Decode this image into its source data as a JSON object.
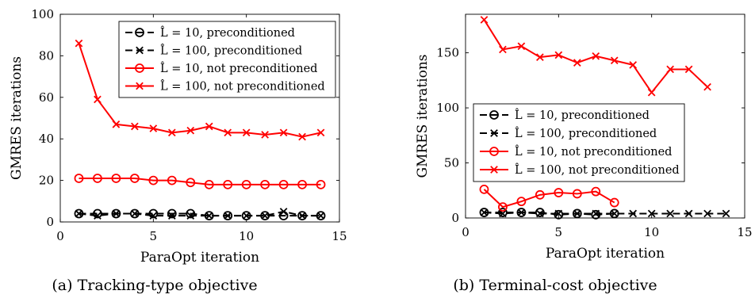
{
  "chart_data": [
    {
      "type": "line",
      "caption": "(a) Tracking-type objective",
      "xlabel": "ParaOpt iteration",
      "ylabel": "GMRES iterations",
      "xlim": [
        0,
        15
      ],
      "ylim": [
        0,
        100
      ],
      "xticks": [
        "0",
        "5",
        "10",
        "15"
      ],
      "yticks": [
        "0",
        "20",
        "40",
        "60",
        "80",
        "100"
      ],
      "legend_position": "top-right",
      "series": [
        {
          "name": "L̂ = 10, preconditioned",
          "color": "#000000",
          "dash": true,
          "marker": "circle",
          "x": [
            1,
            2,
            3,
            4,
            5,
            6,
            7,
            8,
            9,
            10,
            11,
            12,
            13,
            14
          ],
          "y": [
            4,
            4,
            4,
            4,
            4,
            4,
            4,
            3,
            3,
            3,
            3,
            3,
            3,
            3
          ]
        },
        {
          "name": "L̂ = 100, preconditioned",
          "color": "#000000",
          "dash": true,
          "marker": "x",
          "x": [
            1,
            2,
            3,
            4,
            5,
            6,
            7,
            8,
            9,
            10,
            11,
            12,
            13,
            14
          ],
          "y": [
            4,
            3,
            4,
            4,
            3,
            3,
            3,
            3,
            3,
            3,
            3,
            5,
            3,
            3
          ]
        },
        {
          "name": "L̂ = 10, not preconditioned",
          "color": "#ff0000",
          "dash": false,
          "marker": "circle",
          "x": [
            1,
            2,
            3,
            4,
            5,
            6,
            7,
            8,
            9,
            10,
            11,
            12,
            13,
            14
          ],
          "y": [
            21,
            21,
            21,
            21,
            20,
            20,
            19,
            18,
            18,
            18,
            18,
            18,
            18,
            18
          ]
        },
        {
          "name": "L̂ = 100, not preconditioned",
          "color": "#ff0000",
          "dash": false,
          "marker": "x",
          "x": [
            1,
            2,
            3,
            4,
            5,
            6,
            7,
            8,
            9,
            10,
            11,
            12,
            13,
            14
          ],
          "y": [
            86,
            59,
            47,
            46,
            45,
            43,
            44,
            46,
            43,
            43,
            42,
            43,
            41,
            43
          ]
        }
      ]
    },
    {
      "type": "line",
      "caption": "(b) Terminal-cost objective",
      "xlabel": "ParaOpt iteration",
      "ylabel": "GMRES iterations",
      "xlim": [
        0,
        15
      ],
      "ylim": [
        0,
        185
      ],
      "xticks": [
        "0",
        "5",
        "10",
        "15"
      ],
      "yticks": [
        "0",
        "50",
        "100",
        "150"
      ],
      "legend_position": "center-right",
      "series": [
        {
          "name": "L̂ = 10, preconditioned",
          "color": "#000000",
          "dash": true,
          "marker": "circle",
          "x": [
            1,
            2,
            3,
            4,
            5,
            6,
            7,
            8
          ],
          "y": [
            5,
            5,
            5,
            5,
            3,
            4,
            3,
            4
          ]
        },
        {
          "name": "L̂ = 100, preconditioned",
          "color": "#000000",
          "dash": true,
          "marker": "x",
          "x": [
            1,
            2,
            3,
            4,
            5,
            6,
            7,
            8,
            9,
            10,
            11,
            12,
            13,
            14
          ],
          "y": [
            5,
            4,
            5,
            4,
            4,
            4,
            4,
            4,
            4,
            4,
            4,
            4,
            4,
            4
          ]
        },
        {
          "name": "L̂ = 10, not preconditioned",
          "color": "#ff0000",
          "dash": false,
          "marker": "circle",
          "x": [
            1,
            2,
            3,
            4,
            5,
            6,
            7,
            8
          ],
          "y": [
            26,
            10,
            15,
            21,
            23,
            22,
            24,
            14
          ]
        },
        {
          "name": "L̂ = 100, not preconditioned",
          "color": "#ff0000",
          "dash": false,
          "marker": "x",
          "x": [
            1,
            2,
            3,
            4,
            5,
            6,
            7,
            8,
            9,
            10,
            11,
            12,
            13
          ],
          "y": [
            180,
            153,
            156,
            146,
            148,
            141,
            147,
            143,
            139,
            114,
            135,
            135,
            119
          ]
        }
      ]
    }
  ]
}
